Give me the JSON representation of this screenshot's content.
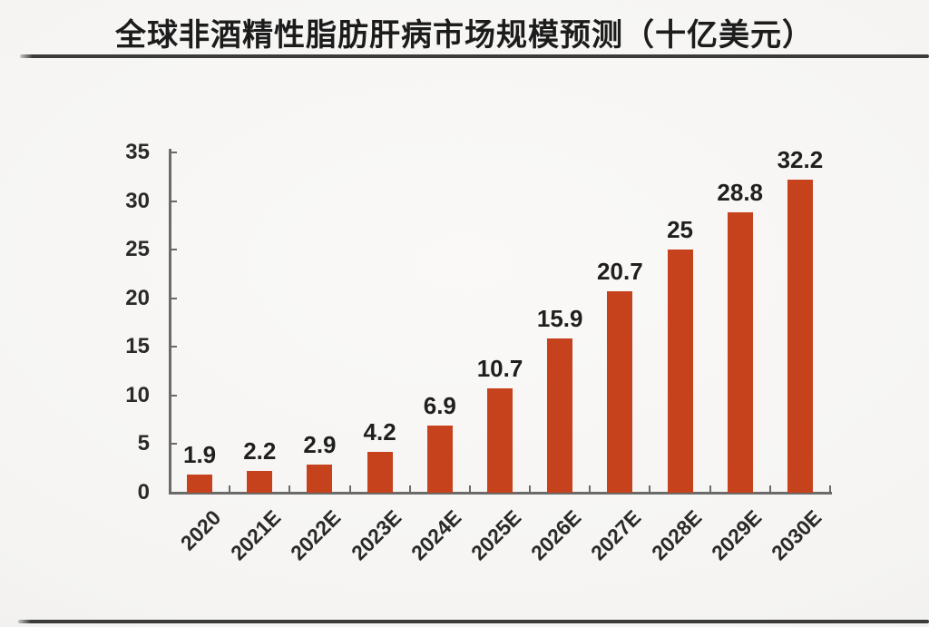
{
  "title": "全球非酒精性脂肪肝病市场规模预测（十亿美元）",
  "chart_data": {
    "type": "bar",
    "title": "全球非酒精性脂肪肝病市场规模预测（十亿美元）",
    "categories": [
      "2020",
      "2021E",
      "2022E",
      "2023E",
      "2024E",
      "2025E",
      "2026E",
      "2027E",
      "2028E",
      "2029E",
      "2030E"
    ],
    "values": [
      1.9,
      2.2,
      2.9,
      4.2,
      6.9,
      10.7,
      15.9,
      20.7,
      25,
      28.8,
      32.2
    ],
    "value_labels": [
      "1.9",
      "2.2",
      "2.9",
      "4.2",
      "6.9",
      "10.7",
      "15.9",
      "20.7",
      "25",
      "28.8",
      "32.2"
    ],
    "xlabel": "",
    "ylabel": "",
    "ylim": [
      0,
      35
    ],
    "yticks": [
      0,
      5,
      10,
      15,
      20,
      25,
      30,
      35
    ],
    "x_tick_marks": "category-boundaries",
    "grid": false,
    "legend": "none",
    "bar_color": "#c5421c",
    "axis_color": "#6a6a6a",
    "text_color": "#2a2a2a"
  }
}
